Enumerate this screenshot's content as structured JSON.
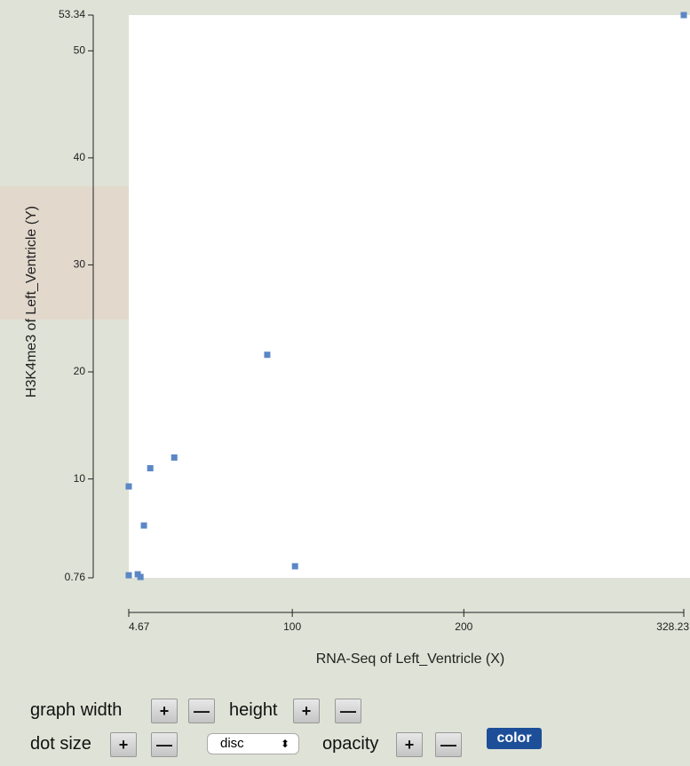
{
  "chart_data": {
    "type": "scatter",
    "x_label": "RNA-Seq of Left_Ventricle (X)",
    "y_label": "H3K4me3 of Left_Ventricle (Y)",
    "color": "#5b87c5",
    "series": [
      {
        "x": [
          4.67,
          17.2,
          31.2,
          85.4,
          13.5,
          101.6,
          4.67,
          9.9,
          11.5,
          328.23
        ],
        "values": [
          9.3,
          11.0,
          12.0,
          21.6,
          5.65,
          1.84,
          1.0,
          1.09,
          0.84,
          53.34
        ]
      }
    ],
    "xlim": [
      4.67,
      328.23
    ],
    "xticks": [
      4.67,
      100,
      200,
      328.23
    ],
    "ylim": [
      0.76,
      53.34
    ],
    "yticks": [
      0.76,
      10,
      20,
      30,
      40,
      50,
      53.34
    ]
  },
  "controls": {
    "graph_width": "graph width",
    "height": "height",
    "dot_size": "dot size",
    "opacity": "opacity",
    "plus": "+",
    "minus": "—",
    "shape": "disc",
    "color": "color"
  }
}
